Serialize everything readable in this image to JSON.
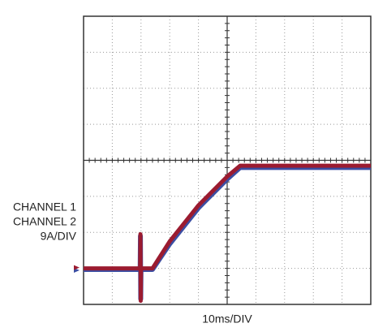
{
  "chart_data": {
    "type": "line",
    "x_label": "10ms/DIV",
    "y_label": "9A/DIV",
    "x": [
      0,
      1.97,
      1.98,
      1.99,
      2.0,
      2.4,
      3.0,
      4.0,
      5.0,
      5.45,
      6,
      10
    ],
    "series": [
      {
        "name": "CHANNEL 1",
        "color": "#9b1b30",
        "values": [
          1.0,
          1.0,
          1.95,
          0.1,
          1.0,
          1.0,
          1.75,
          2.75,
          3.55,
          3.85,
          3.85,
          3.85
        ]
      },
      {
        "name": "CHANNEL 2",
        "color": "#3b4ea3",
        "values": [
          0.97,
          0.97,
          1.9,
          0.15,
          0.97,
          0.97,
          1.68,
          2.68,
          3.48,
          3.8,
          3.8,
          3.8
        ]
      }
    ],
    "xlim": [
      0,
      10
    ],
    "ylim": [
      0,
      8
    ],
    "xticks": [
      0,
      1,
      2,
      3,
      4,
      5,
      6,
      7,
      8,
      9,
      10
    ],
    "yticks": [
      0,
      1,
      2,
      3,
      4,
      5,
      6,
      7,
      8
    ],
    "grid": true
  }
}
